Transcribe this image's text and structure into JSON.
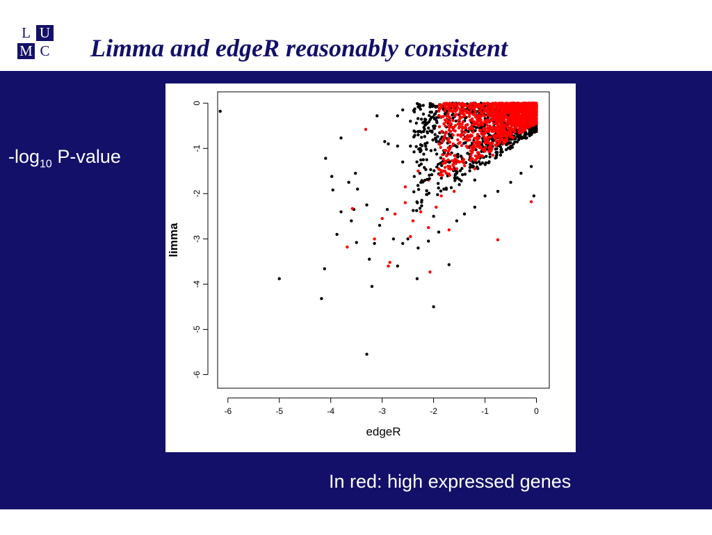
{
  "logo": {
    "letters": [
      "L",
      "U",
      "M",
      "C"
    ]
  },
  "title": "Limma and edgeR reasonably consistent",
  "side_label": {
    "prefix": "-log",
    "subscript": "10",
    "suffix": " P-value"
  },
  "caption": "In red: high expressed genes",
  "colors": {
    "background": "#13106a",
    "black_points": "#000000",
    "red_points": "#ff0000"
  },
  "chart_data": {
    "type": "scatter",
    "title": "",
    "xlabel": "edgeR",
    "ylabel": "limma",
    "xlim": [
      -6.2,
      0.25
    ],
    "ylim": [
      -6.3,
      0.25
    ],
    "xticks": [
      -6,
      -5,
      -4,
      -3,
      -2,
      -1,
      0
    ],
    "yticks": [
      0,
      -1,
      -2,
      -3,
      -4,
      -5,
      -6
    ],
    "grid": false,
    "series": [
      {
        "color": "#000000",
        "points": [
          [
            -6.15,
            -0.18
          ],
          [
            -5.0,
            -3.88
          ],
          [
            -4.18,
            -4.32
          ],
          [
            -4.12,
            -3.66
          ],
          [
            -4.1,
            -1.22
          ],
          [
            -3.98,
            -1.62
          ],
          [
            -3.96,
            -1.92
          ],
          [
            -3.8,
            -0.77
          ],
          [
            -3.88,
            -2.9
          ],
          [
            -3.3,
            -5.55
          ],
          [
            -3.2,
            -4.05
          ],
          [
            -2.32,
            -3.88
          ],
          [
            -2.0,
            -4.5
          ],
          [
            -1.7,
            -3.57
          ],
          [
            -3.5,
            -3.08
          ],
          [
            -3.52,
            -1.55
          ],
          [
            -3.65,
            -1.75
          ],
          [
            -3.6,
            -2.6
          ],
          [
            -3.48,
            -1.9
          ],
          [
            -3.3,
            -2.25
          ],
          [
            -3.15,
            -3.1
          ],
          [
            -3.05,
            -2.7
          ],
          [
            -2.9,
            -2.35
          ],
          [
            -2.78,
            -3.0
          ],
          [
            -2.6,
            -3.1
          ],
          [
            -2.5,
            -3.0
          ],
          [
            -2.3,
            -3.2
          ],
          [
            -2.1,
            -3.05
          ],
          [
            -2.0,
            -2.5
          ],
          [
            -1.9,
            -2.85
          ],
          [
            -3.1,
            -0.28
          ],
          [
            -2.95,
            -0.85
          ],
          [
            -2.88,
            -0.9
          ],
          [
            -2.7,
            -0.95
          ],
          [
            -2.6,
            -1.3
          ],
          [
            -2.3,
            -0.08
          ],
          [
            -2.2,
            -0.05
          ],
          [
            -2.6,
            -0.15
          ],
          [
            -2.7,
            -0.28
          ],
          [
            -2.45,
            -0.4
          ],
          [
            -2.1,
            -0.55
          ],
          [
            -2.3,
            -0.7
          ],
          [
            -2.45,
            -0.95
          ],
          [
            -2.2,
            -1.25
          ],
          [
            -2.05,
            -1.05
          ],
          [
            -3.55,
            -2.35
          ],
          [
            -3.8,
            -2.4
          ],
          [
            -3.25,
            -3.45
          ],
          [
            -2.7,
            -3.6
          ],
          [
            -1.55,
            -2.6
          ],
          [
            -1.4,
            -2.45
          ],
          [
            -1.2,
            -2.3
          ],
          [
            -1.0,
            -2.05
          ],
          [
            -0.75,
            -1.95
          ],
          [
            -0.5,
            -1.75
          ],
          [
            -0.3,
            -1.55
          ],
          [
            -0.1,
            -1.4
          ],
          [
            -0.05,
            -2.05
          ],
          [
            -1.2,
            -1.7
          ],
          [
            -1.5,
            -1.8
          ],
          [
            -1.8,
            -1.9
          ],
          [
            -1.65,
            -1.1
          ],
          [
            -1.5,
            -0.4
          ],
          [
            -1.3,
            -0.05
          ],
          [
            -1.0,
            -0.02
          ]
        ]
      },
      {
        "color": "#ff0000",
        "points": [
          [
            -3.32,
            -0.58
          ],
          [
            -3.58,
            -2.33
          ],
          [
            -3.68,
            -3.18
          ],
          [
            -3.15,
            -3.0
          ],
          [
            -2.85,
            -3.52
          ],
          [
            -2.88,
            -3.6
          ],
          [
            -2.07,
            -3.73
          ],
          [
            -0.75,
            -3.02
          ],
          [
            -0.1,
            -2.18
          ],
          [
            -3.0,
            -2.55
          ],
          [
            -2.75,
            -2.45
          ],
          [
            -2.55,
            -2.2
          ],
          [
            -2.4,
            -2.6
          ],
          [
            -2.25,
            -2.4
          ],
          [
            -2.1,
            -2.75
          ],
          [
            -1.95,
            -2.3
          ],
          [
            -1.85,
            -2.05
          ],
          [
            -1.7,
            -2.8
          ],
          [
            -1.6,
            -1.95
          ],
          [
            -2.3,
            -1.5
          ],
          [
            -2.1,
            -1.7
          ],
          [
            -2.55,
            -1.85
          ],
          [
            -2.45,
            -2.95
          ],
          [
            -1.9,
            -1.45
          ],
          [
            -1.75,
            -1.55
          ],
          [
            -1.6,
            -1.3
          ],
          [
            -1.45,
            -1.2
          ],
          [
            -1.3,
            -0.95
          ],
          [
            -1.2,
            -1.45
          ],
          [
            -1.1,
            -0.6
          ],
          [
            -0.95,
            -0.75
          ],
          [
            -0.85,
            -1.15
          ],
          [
            -0.7,
            -0.45
          ],
          [
            -0.55,
            -0.9
          ],
          [
            -0.4,
            -0.3
          ],
          [
            -0.25,
            -0.6
          ],
          [
            -0.15,
            -0.2
          ],
          [
            -0.6,
            -0.15
          ],
          [
            -0.9,
            -0.25
          ],
          [
            -1.25,
            -0.35
          ]
        ]
      }
    ]
  }
}
